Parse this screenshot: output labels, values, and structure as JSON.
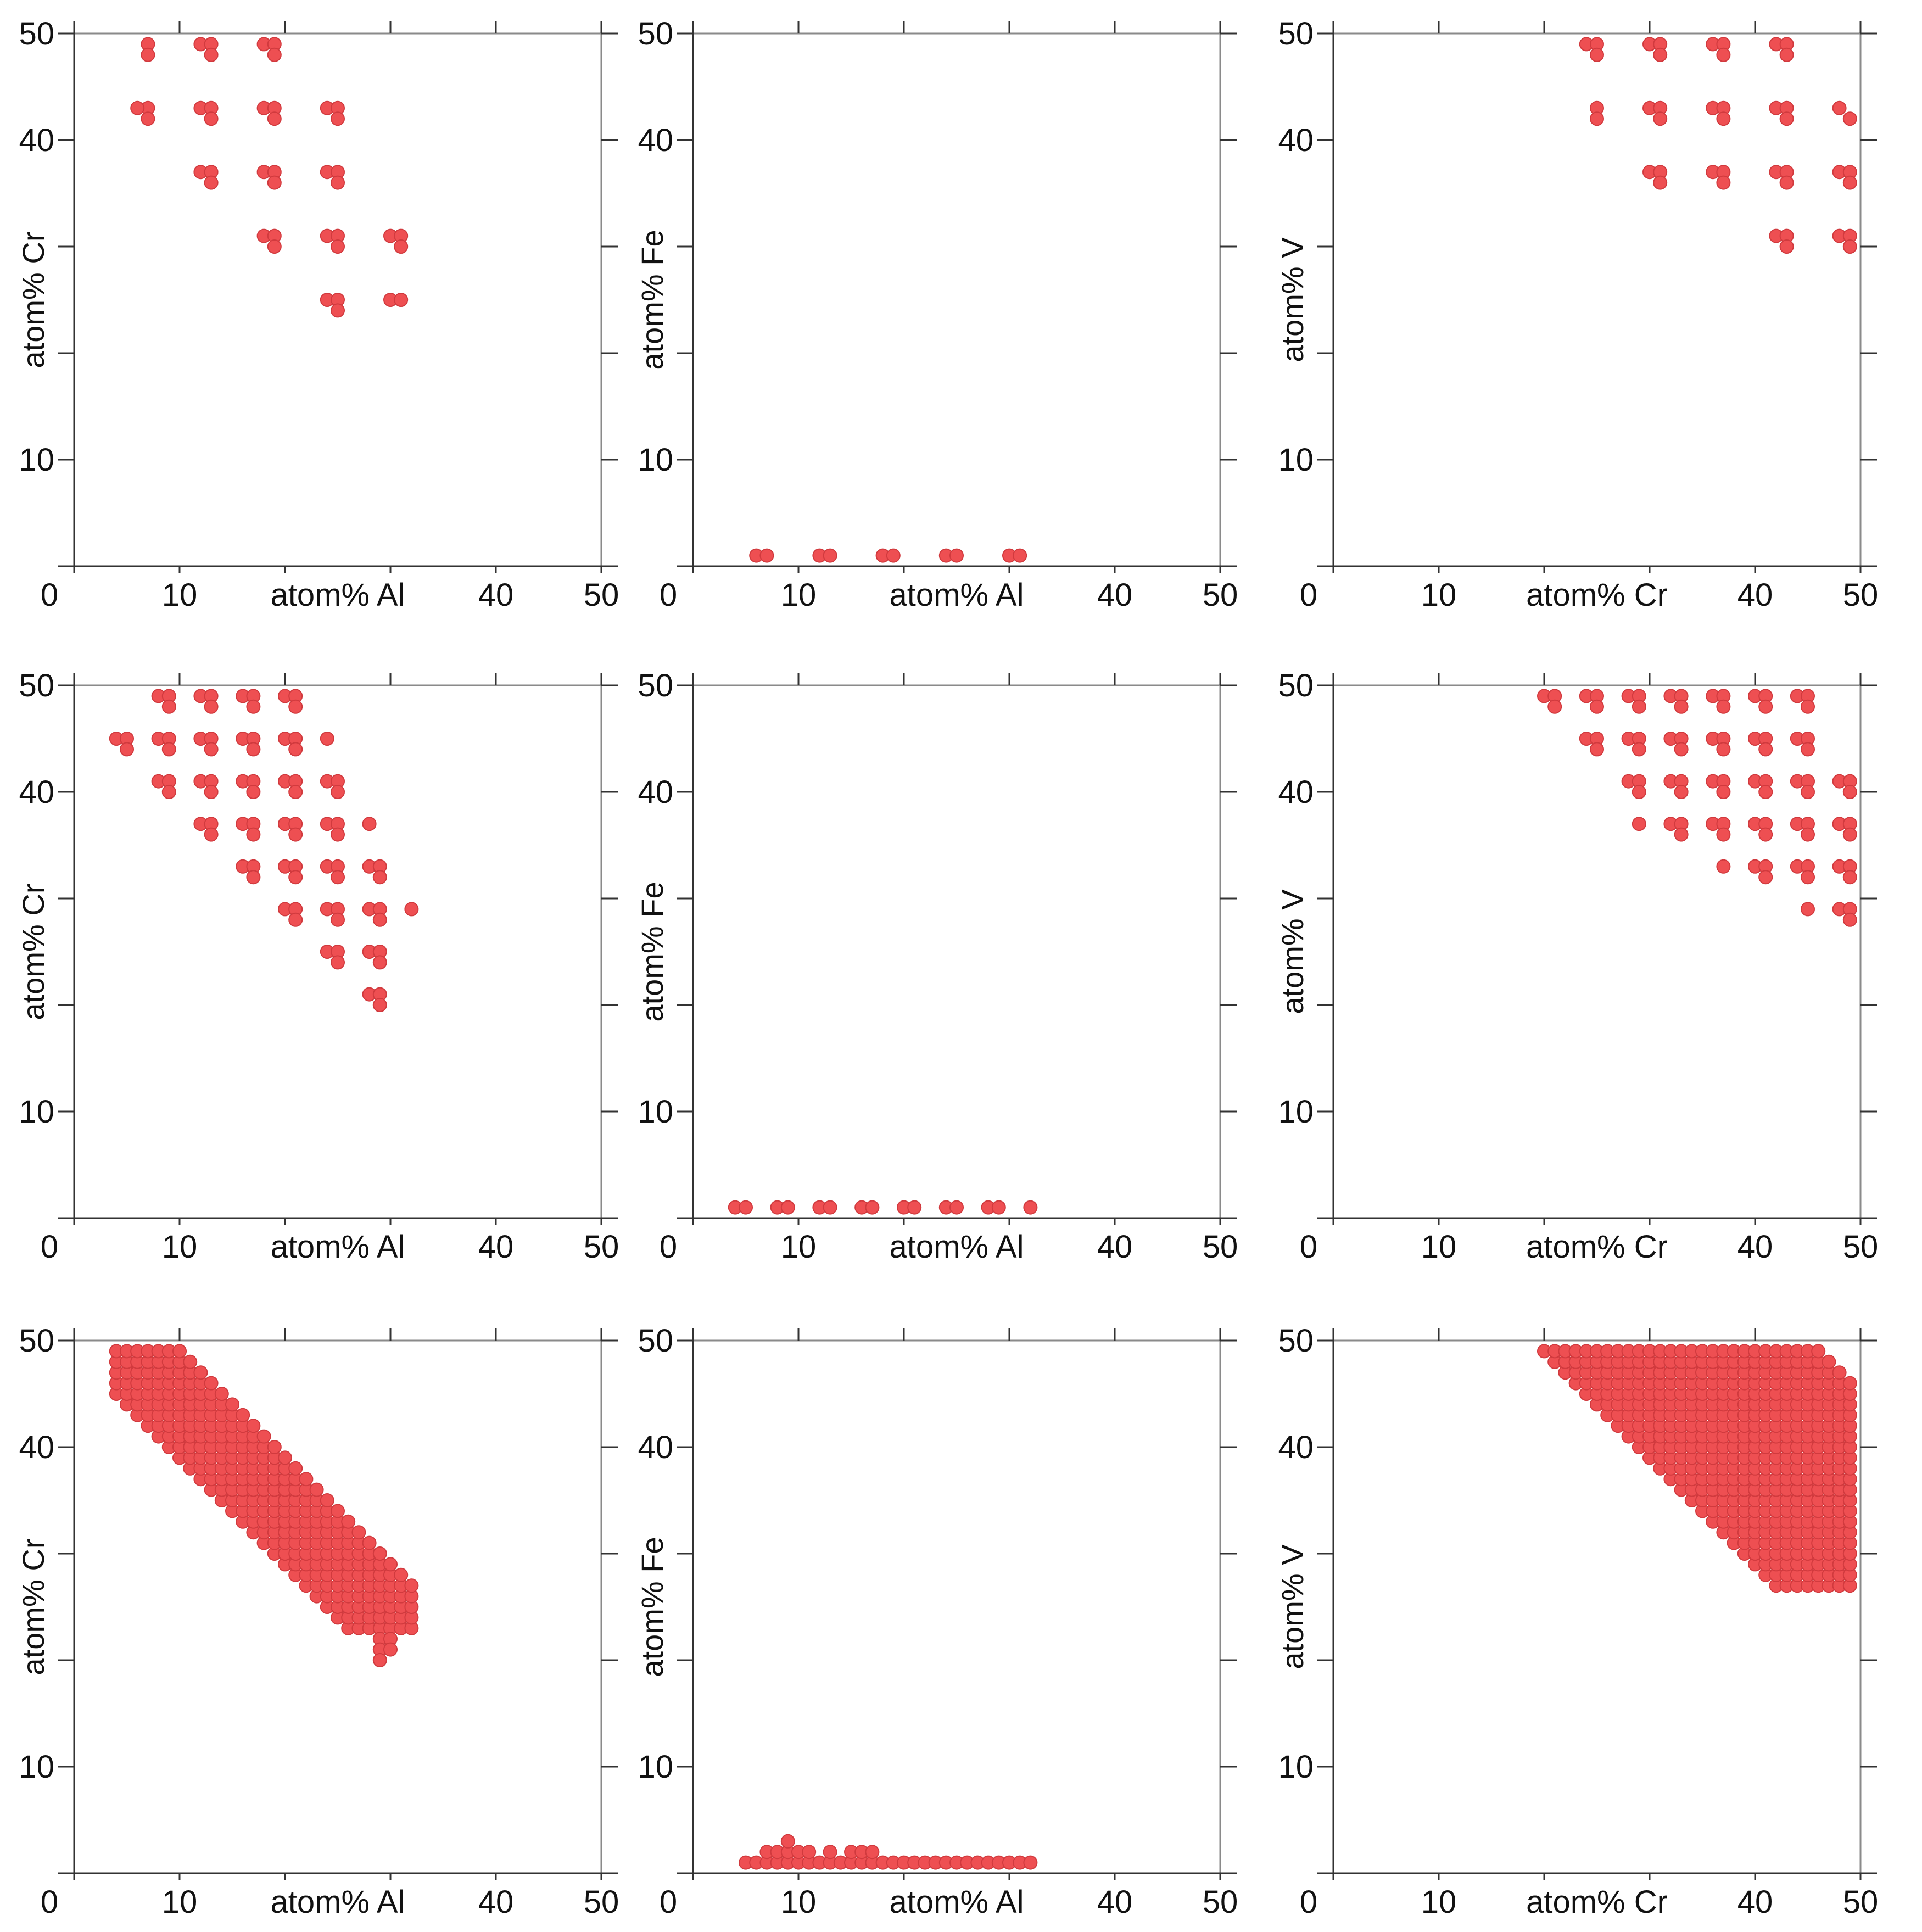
{
  "chart_data": [
    {
      "id": "r1c1",
      "type": "scatter",
      "xlabel": "atom% Al",
      "ylabel": "atom% Cr",
      "xlim": [
        0,
        50
      ],
      "ylim": [
        0,
        50
      ],
      "x_tick_labels": [
        "0",
        "10",
        "atom% Al",
        "40",
        "50"
      ],
      "y_tick_labels": [
        "50",
        "40",
        "",
        "",
        "10"
      ],
      "color": "#ee4f52",
      "points": [
        [
          7,
          49
        ],
        [
          7,
          48
        ],
        [
          7,
          43
        ],
        [
          6,
          43
        ],
        [
          7,
          42
        ],
        [
          12,
          49
        ],
        [
          13,
          49
        ],
        [
          13,
          48
        ],
        [
          12,
          43
        ],
        [
          13,
          43
        ],
        [
          13,
          42
        ],
        [
          12,
          37
        ],
        [
          13,
          37
        ],
        [
          13,
          36
        ],
        [
          18,
          49
        ],
        [
          19,
          49
        ],
        [
          19,
          48
        ],
        [
          18,
          43
        ],
        [
          19,
          43
        ],
        [
          19,
          42
        ],
        [
          18,
          37
        ],
        [
          19,
          37
        ],
        [
          19,
          36
        ],
        [
          18,
          31
        ],
        [
          19,
          31
        ],
        [
          19,
          30
        ],
        [
          24,
          43
        ],
        [
          25,
          43
        ],
        [
          25,
          42
        ],
        [
          24,
          37
        ],
        [
          25,
          37
        ],
        [
          25,
          36
        ],
        [
          24,
          31
        ],
        [
          25,
          31
        ],
        [
          25,
          30
        ],
        [
          24,
          25
        ],
        [
          25,
          25
        ],
        [
          25,
          24
        ],
        [
          30,
          31
        ],
        [
          31,
          31
        ],
        [
          31,
          30
        ],
        [
          30,
          25
        ],
        [
          31,
          25
        ]
      ]
    },
    {
      "id": "r1c2",
      "type": "scatter",
      "xlabel": "atom% Al",
      "ylabel": "atom% Fe",
      "xlim": [
        0,
        50
      ],
      "ylim": [
        0,
        50
      ],
      "x_tick_labels": [
        "0",
        "10",
        "atom% Al",
        "40",
        "50"
      ],
      "y_tick_labels": [
        "50",
        "40",
        "",
        "",
        "10"
      ],
      "color": "#ee4f52",
      "points": [
        [
          6,
          1
        ],
        [
          7,
          1
        ],
        [
          12,
          1
        ],
        [
          13,
          1
        ],
        [
          18,
          1
        ],
        [
          19,
          1
        ],
        [
          24,
          1
        ],
        [
          25,
          1
        ],
        [
          30,
          1
        ],
        [
          31,
          1
        ]
      ]
    },
    {
      "id": "r1c3",
      "type": "scatter",
      "xlabel": "atom% Cr",
      "ylabel": "atom% V",
      "xlim": [
        0,
        50
      ],
      "ylim": [
        0,
        50
      ],
      "x_tick_labels": [
        "0",
        "10",
        "atom% Cr",
        "40",
        "50"
      ],
      "y_tick_labels": [
        "50",
        "40",
        "",
        "",
        "10"
      ],
      "color": "#ee4f52",
      "points": [
        [
          24,
          49
        ],
        [
          25,
          49
        ],
        [
          25,
          48
        ],
        [
          25,
          43
        ],
        [
          25,
          42
        ],
        [
          30,
          49
        ],
        [
          31,
          49
        ],
        [
          31,
          48
        ],
        [
          30,
          43
        ],
        [
          31,
          43
        ],
        [
          31,
          42
        ],
        [
          30,
          37
        ],
        [
          31,
          37
        ],
        [
          31,
          36
        ],
        [
          36,
          49
        ],
        [
          37,
          49
        ],
        [
          37,
          48
        ],
        [
          36,
          43
        ],
        [
          37,
          43
        ],
        [
          37,
          42
        ],
        [
          36,
          37
        ],
        [
          37,
          37
        ],
        [
          37,
          36
        ],
        [
          42,
          49
        ],
        [
          43,
          49
        ],
        [
          43,
          48
        ],
        [
          42,
          43
        ],
        [
          43,
          43
        ],
        [
          43,
          42
        ],
        [
          42,
          37
        ],
        [
          43,
          37
        ],
        [
          43,
          36
        ],
        [
          42,
          31
        ],
        [
          43,
          31
        ],
        [
          43,
          30
        ],
        [
          48,
          43
        ],
        [
          49,
          42
        ],
        [
          48,
          37
        ],
        [
          49,
          37
        ],
        [
          49,
          36
        ],
        [
          48,
          31
        ],
        [
          49,
          31
        ],
        [
          49,
          30
        ]
      ]
    },
    {
      "id": "r2c1",
      "type": "scatter",
      "xlabel": "atom% Al",
      "ylabel": "atom% Cr",
      "xlim": [
        0,
        50
      ],
      "ylim": [
        0,
        50
      ],
      "x_tick_labels": [
        "0",
        "10",
        "atom% Al",
        "40",
        "50"
      ],
      "y_tick_labels": [
        "50",
        "40",
        "",
        "",
        "10"
      ],
      "color": "#ee4f52",
      "points": [
        [
          4,
          45
        ],
        [
          5,
          45
        ],
        [
          5,
          44
        ],
        [
          8,
          49
        ],
        [
          9,
          49
        ],
        [
          9,
          48
        ],
        [
          8,
          45
        ],
        [
          9,
          45
        ],
        [
          9,
          44
        ],
        [
          8,
          41
        ],
        [
          9,
          41
        ],
        [
          9,
          40
        ],
        [
          12,
          49
        ],
        [
          13,
          49
        ],
        [
          13,
          48
        ],
        [
          12,
          45
        ],
        [
          13,
          45
        ],
        [
          13,
          44
        ],
        [
          12,
          41
        ],
        [
          13,
          41
        ],
        [
          13,
          40
        ],
        [
          12,
          37
        ],
        [
          13,
          37
        ],
        [
          13,
          36
        ],
        [
          16,
          49
        ],
        [
          17,
          49
        ],
        [
          17,
          48
        ],
        [
          16,
          45
        ],
        [
          17,
          45
        ],
        [
          17,
          44
        ],
        [
          16,
          41
        ],
        [
          17,
          41
        ],
        [
          17,
          40
        ],
        [
          16,
          37
        ],
        [
          17,
          37
        ],
        [
          17,
          36
        ],
        [
          16,
          33
        ],
        [
          17,
          33
        ],
        [
          17,
          32
        ],
        [
          20,
          49
        ],
        [
          21,
          49
        ],
        [
          21,
          48
        ],
        [
          20,
          45
        ],
        [
          21,
          45
        ],
        [
          21,
          44
        ],
        [
          20,
          41
        ],
        [
          21,
          41
        ],
        [
          21,
          40
        ],
        [
          20,
          37
        ],
        [
          21,
          37
        ],
        [
          21,
          36
        ],
        [
          20,
          33
        ],
        [
          21,
          33
        ],
        [
          21,
          32
        ],
        [
          20,
          29
        ],
        [
          21,
          29
        ],
        [
          21,
          28
        ],
        [
          24,
          45
        ],
        [
          24,
          41
        ],
        [
          25,
          41
        ],
        [
          25,
          40
        ],
        [
          24,
          37
        ],
        [
          25,
          37
        ],
        [
          25,
          36
        ],
        [
          24,
          33
        ],
        [
          25,
          33
        ],
        [
          25,
          32
        ],
        [
          24,
          29
        ],
        [
          25,
          29
        ],
        [
          25,
          28
        ],
        [
          24,
          25
        ],
        [
          25,
          25
        ],
        [
          25,
          24
        ],
        [
          28,
          37
        ],
        [
          28,
          33
        ],
        [
          29,
          33
        ],
        [
          29,
          32
        ],
        [
          28,
          29
        ],
        [
          29,
          29
        ],
        [
          29,
          28
        ],
        [
          28,
          25
        ],
        [
          29,
          25
        ],
        [
          29,
          24
        ],
        [
          28,
          21
        ],
        [
          29,
          21
        ],
        [
          29,
          20
        ],
        [
          32,
          29
        ]
      ]
    },
    {
      "id": "r2c2",
      "type": "scatter",
      "xlabel": "atom% Al",
      "ylabel": "atom% Fe",
      "xlim": [
        0,
        50
      ],
      "ylim": [
        0,
        50
      ],
      "x_tick_labels": [
        "0",
        "10",
        "atom% Al",
        "40",
        "50"
      ],
      "y_tick_labels": [
        "50",
        "40",
        "",
        "",
        "10"
      ],
      "color": "#ee4f52",
      "points": [
        [
          4,
          1
        ],
        [
          5,
          1
        ],
        [
          8,
          1
        ],
        [
          9,
          1
        ],
        [
          12,
          1
        ],
        [
          13,
          1
        ],
        [
          16,
          1
        ],
        [
          17,
          1
        ],
        [
          20,
          1
        ],
        [
          21,
          1
        ],
        [
          24,
          1
        ],
        [
          25,
          1
        ],
        [
          28,
          1
        ],
        [
          29,
          1
        ],
        [
          32,
          1
        ]
      ]
    },
    {
      "id": "r2c3",
      "type": "scatter",
      "xlabel": "atom% Cr",
      "ylabel": "atom% V",
      "xlim": [
        0,
        50
      ],
      "ylim": [
        0,
        50
      ],
      "x_tick_labels": [
        "0",
        "10",
        "atom% Cr",
        "40",
        "50"
      ],
      "y_tick_labels": [
        "50",
        "40",
        "",
        "",
        "10"
      ],
      "color": "#ee4f52",
      "points": [
        [
          20,
          49
        ],
        [
          21,
          49
        ],
        [
          21,
          48
        ],
        [
          24,
          49
        ],
        [
          25,
          49
        ],
        [
          25,
          48
        ],
        [
          24,
          45
        ],
        [
          25,
          45
        ],
        [
          25,
          44
        ],
        [
          28,
          49
        ],
        [
          29,
          49
        ],
        [
          29,
          48
        ],
        [
          28,
          45
        ],
        [
          29,
          45
        ],
        [
          29,
          44
        ],
        [
          28,
          41
        ],
        [
          29,
          41
        ],
        [
          29,
          40
        ],
        [
          29,
          37
        ],
        [
          32,
          49
        ],
        [
          33,
          49
        ],
        [
          33,
          48
        ],
        [
          32,
          45
        ],
        [
          33,
          45
        ],
        [
          33,
          44
        ],
        [
          32,
          41
        ],
        [
          33,
          41
        ],
        [
          33,
          40
        ],
        [
          32,
          37
        ],
        [
          33,
          37
        ],
        [
          33,
          36
        ],
        [
          36,
          49
        ],
        [
          37,
          49
        ],
        [
          37,
          48
        ],
        [
          36,
          45
        ],
        [
          37,
          45
        ],
        [
          37,
          44
        ],
        [
          36,
          41
        ],
        [
          37,
          41
        ],
        [
          37,
          40
        ],
        [
          36,
          37
        ],
        [
          37,
          37
        ],
        [
          37,
          36
        ],
        [
          37,
          33
        ],
        [
          40,
          49
        ],
        [
          41,
          49
        ],
        [
          41,
          48
        ],
        [
          40,
          45
        ],
        [
          41,
          45
        ],
        [
          41,
          44
        ],
        [
          40,
          41
        ],
        [
          41,
          41
        ],
        [
          41,
          40
        ],
        [
          40,
          37
        ],
        [
          41,
          37
        ],
        [
          41,
          36
        ],
        [
          40,
          33
        ],
        [
          41,
          33
        ],
        [
          41,
          32
        ],
        [
          44,
          49
        ],
        [
          45,
          49
        ],
        [
          45,
          48
        ],
        [
          44,
          45
        ],
        [
          45,
          45
        ],
        [
          45,
          44
        ],
        [
          44,
          41
        ],
        [
          45,
          41
        ],
        [
          45,
          40
        ],
        [
          44,
          37
        ],
        [
          45,
          37
        ],
        [
          45,
          36
        ],
        [
          44,
          33
        ],
        [
          45,
          33
        ],
        [
          45,
          32
        ],
        [
          45,
          29
        ],
        [
          48,
          41
        ],
        [
          49,
          41
        ],
        [
          49,
          40
        ],
        [
          48,
          37
        ],
        [
          49,
          37
        ],
        [
          49,
          36
        ],
        [
          48,
          33
        ],
        [
          49,
          33
        ],
        [
          49,
          32
        ],
        [
          48,
          29
        ],
        [
          49,
          29
        ],
        [
          49,
          28
        ]
      ]
    },
    {
      "id": "r3c1",
      "type": "scatter",
      "xlabel": "atom% Al",
      "ylabel": "atom% Cr",
      "xlim": [
        0,
        50
      ],
      "ylim": [
        0,
        50
      ],
      "x_tick_labels": [
        "0",
        "10",
        "atom% Al",
        "40",
        "50"
      ],
      "y_tick_labels": [
        "50",
        "40",
        "",
        "",
        "10"
      ],
      "color": "#ee4f52",
      "region": {
        "x_min": 4,
        "x_max": 32,
        "y_max": 49,
        "sum_min": 49,
        "sum_max": 59,
        "fill_y_min": 23,
        "fill_y_max": 49
      },
      "extra_points": [
        [
          29,
          22
        ],
        [
          30,
          22
        ],
        [
          29,
          21
        ],
        [
          30,
          21
        ],
        [
          29,
          20
        ]
      ],
      "points": []
    },
    {
      "id": "r3c2",
      "type": "scatter",
      "xlabel": "atom% Al",
      "ylabel": "atom% Fe",
      "xlim": [
        0,
        50
      ],
      "ylim": [
        0,
        50
      ],
      "x_tick_labels": [
        "0",
        "10",
        "atom% Al",
        "40",
        "50"
      ],
      "y_tick_labels": [
        "50",
        "40",
        "",
        "",
        "10"
      ],
      "color": "#ee4f52",
      "row_points": {
        "y": 1,
        "x_from": 5,
        "x_to": 32
      },
      "extra_points": [
        [
          7,
          2
        ],
        [
          8,
          2
        ],
        [
          9,
          2
        ],
        [
          9,
          3
        ],
        [
          10,
          2
        ],
        [
          11,
          2
        ],
        [
          13,
          2
        ],
        [
          15,
          2
        ],
        [
          16,
          2
        ],
        [
          17,
          2
        ]
      ],
      "points": []
    },
    {
      "id": "r3c3",
      "type": "scatter",
      "xlabel": "atom% Cr",
      "ylabel": "atom% V",
      "xlim": [
        0,
        50
      ],
      "ylim": [
        0,
        50
      ],
      "x_tick_labels": [
        "0",
        "10",
        "atom% Cr",
        "40",
        "50"
      ],
      "y_tick_labels": [
        "50",
        "40",
        "",
        "",
        "10"
      ],
      "color": "#ee4f52",
      "region": {
        "x_min": 20,
        "x_max": 49,
        "y_max": 49,
        "sum_min": 69,
        "sum_max": 95,
        "fill_y_min": 27,
        "fill_y_max": 49
      },
      "extra_points": [],
      "points": []
    }
  ]
}
